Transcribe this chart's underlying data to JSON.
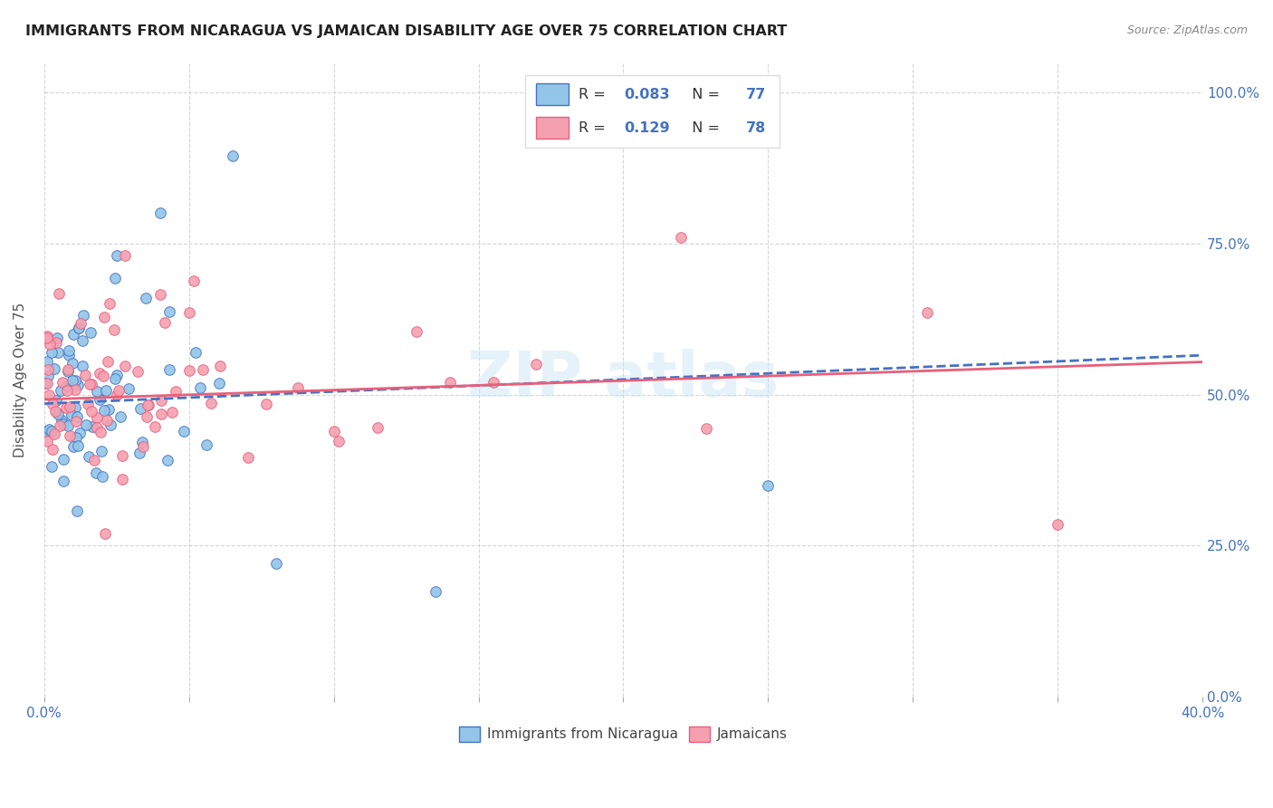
{
  "title": "IMMIGRANTS FROM NICARAGUA VS JAMAICAN DISABILITY AGE OVER 75 CORRELATION CHART",
  "source": "Source: ZipAtlas.com",
  "ylabel": "Disability Age Over 75",
  "xlim": [
    0.0,
    0.4
  ],
  "ylim": [
    0.0,
    1.05
  ],
  "r_nicaragua": 0.083,
  "n_nicaragua": 77,
  "r_jamaican": 0.129,
  "n_jamaican": 78,
  "legend_labels": [
    "Immigrants from Nicaragua",
    "Jamaicans"
  ],
  "color_nicaragua": "#92C5E8",
  "color_jamaican": "#F4A0B0",
  "color_accent": "#4472C4",
  "color_pink_accent": "#E8607A",
  "background_color": "#FFFFFF",
  "grid_color": "#CCCCCC",
  "nic_line_color": "#4472C4",
  "jam_line_color": "#E8607A",
  "nic_intercept": 0.485,
  "nic_slope": 0.2,
  "jam_intercept": 0.492,
  "jam_slope": 0.155
}
